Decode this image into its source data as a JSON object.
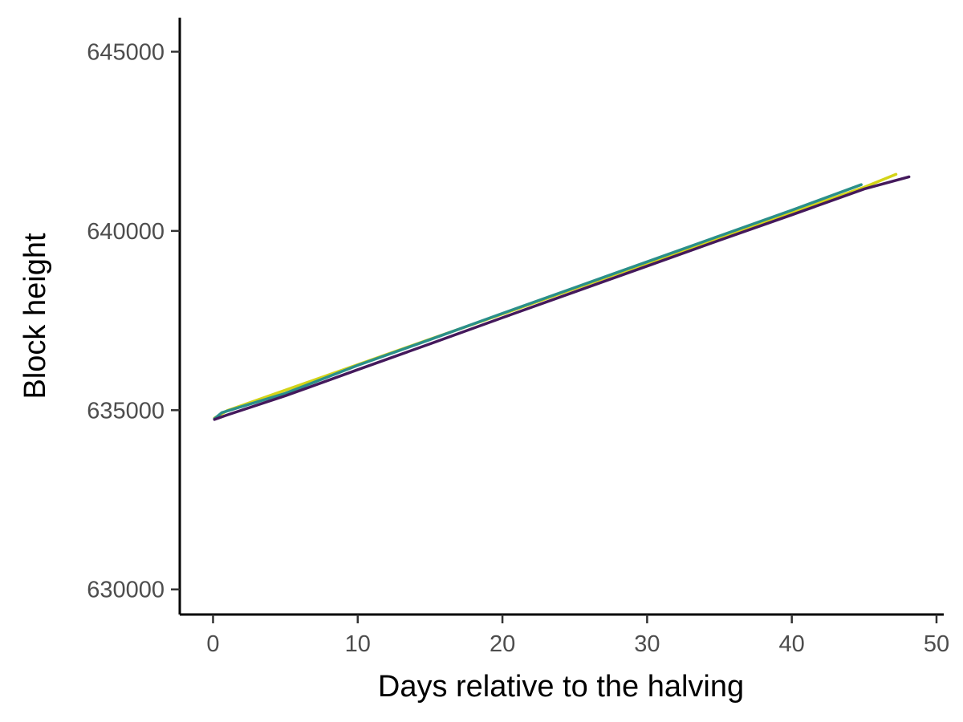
{
  "chart_data": {
    "type": "line",
    "title": "",
    "xlabel": "Days relative to the halving",
    "ylabel": "Block height",
    "xlim": [
      -2.3,
      50.5
    ],
    "ylim": [
      629300,
      645950
    ],
    "x_ticks": [
      0,
      10,
      20,
      30,
      40,
      50
    ],
    "y_ticks": [
      630000,
      635000,
      640000,
      645000
    ],
    "x_tick_labels": [
      "0",
      "10",
      "20",
      "30",
      "40",
      "50"
    ],
    "y_tick_labels": [
      "630000",
      "635000",
      "640000",
      "645000"
    ],
    "grid": false,
    "legend": "none",
    "series": [
      {
        "color": "#d4d418",
        "x": [
          0.1,
          1,
          5,
          10,
          15,
          20,
          25,
          30,
          35,
          40,
          45,
          47.2
        ],
        "y": [
          634780,
          634990,
          635560,
          636270,
          636980,
          637680,
          638390,
          639100,
          639810,
          640510,
          641220,
          641580
        ]
      },
      {
        "color": "#2a8f8a",
        "x": [
          0.1,
          0.6,
          5,
          10,
          15,
          20,
          25,
          30,
          35,
          40,
          44.8
        ],
        "y": [
          634760,
          634930,
          635470,
          636250,
          636970,
          637700,
          638420,
          639140,
          639860,
          640580,
          641290
        ]
      },
      {
        "color": "#44195c",
        "x": [
          0.1,
          1,
          5,
          10,
          15,
          20,
          25,
          30,
          35,
          40,
          45,
          48.1
        ],
        "y": [
          634740,
          634870,
          635400,
          636130,
          636850,
          637580,
          638300,
          639020,
          639740,
          640450,
          641170,
          641510
        ]
      }
    ]
  }
}
